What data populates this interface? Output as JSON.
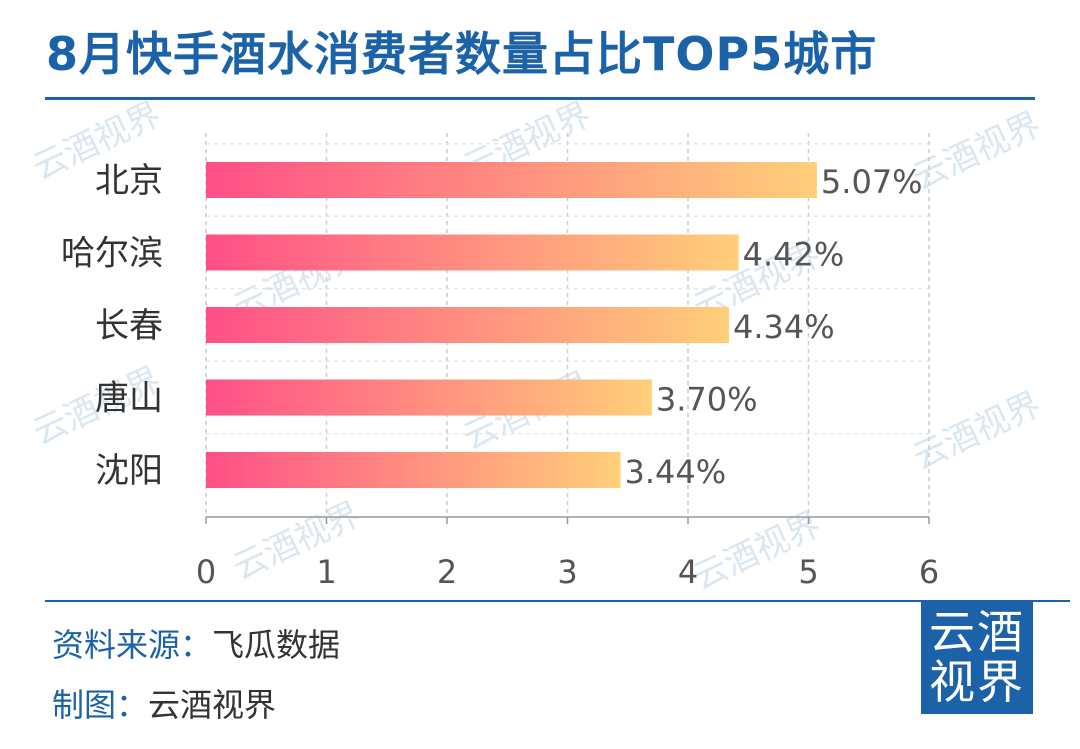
{
  "title": "8月快手酒水消费者数量占比TOP5城市",
  "watermark": "云酒视界",
  "footer": {
    "source_label": "资料来源：",
    "source_value": "飞瓜数据",
    "maker_label": "制图：",
    "maker_value": "云酒视界"
  },
  "logo": {
    "line1": "云酒",
    "line2": "视界"
  },
  "colors": {
    "accent": "#1c62a8",
    "bar_start": "#ff4f87",
    "bar_end": "#ffcf79",
    "watermark": "#c2d6ea"
  },
  "chart_data": {
    "type": "bar",
    "orientation": "horizontal",
    "title": "8月快手酒水消费者数量占比TOP5城市",
    "categories": [
      "北京",
      "哈尔滨",
      "长春",
      "唐山",
      "沈阳"
    ],
    "values": [
      5.07,
      4.42,
      4.34,
      3.7,
      3.44
    ],
    "value_labels": [
      "5.07%",
      "4.42%",
      "4.34%",
      "3.70%",
      "3.44%"
    ],
    "xlim": [
      0,
      6
    ],
    "xticks": [
      "0",
      "1",
      "2",
      "3",
      "4",
      "5",
      "6"
    ],
    "xlabel": "",
    "ylabel": "",
    "grid": "vertical dashed",
    "legend": "none"
  }
}
